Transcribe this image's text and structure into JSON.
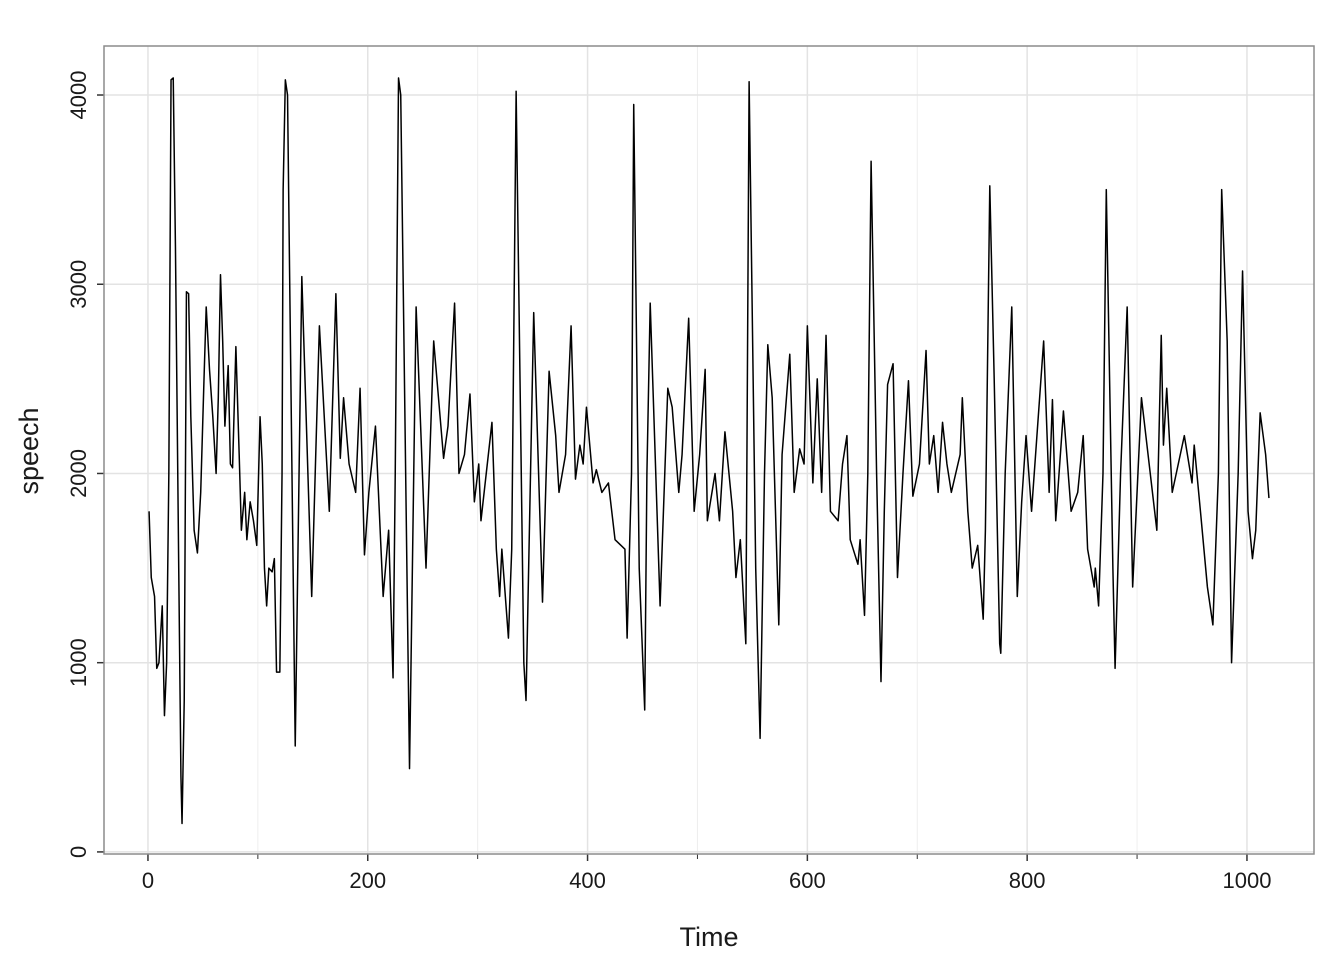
{
  "chart_data": {
    "type": "line",
    "x_label": "Time",
    "y_label": "speech",
    "xlim": [
      -40,
      1061
    ],
    "ylim": [
      -11,
      4259
    ],
    "xticks": [
      0,
      200,
      400,
      600,
      800,
      1000
    ],
    "xminorticks": [
      100,
      300,
      500,
      700,
      900
    ],
    "yticks": [
      0,
      1000,
      2000,
      3000,
      4000
    ],
    "grid": true,
    "series": [
      {
        "color": "#000000",
        "x": [
          1,
          3,
          6,
          8,
          10,
          13,
          15,
          17,
          19,
          21,
          23,
          25,
          28,
          30,
          31,
          33,
          35,
          37,
          39,
          42,
          45,
          48,
          51,
          53,
          56,
          59,
          62,
          64,
          66,
          68,
          70,
          73,
          75,
          77,
          80,
          83,
          85,
          88,
          90,
          93,
          96,
          99,
          102,
          104,
          106,
          108,
          110,
          113,
          115,
          117,
          120,
          122,
          123,
          125,
          127,
          129,
          134,
          140,
          149,
          156,
          165,
          171,
          175,
          178,
          183,
          189,
          193,
          197,
          201,
          207,
          214,
          219,
          223,
          225,
          228,
          230,
          238,
          244,
          253,
          260,
          269,
          273,
          279,
          283,
          288,
          293,
          297,
          301,
          303,
          313,
          317,
          320,
          322,
          328,
          331,
          335,
          342,
          344,
          351,
          359,
          365,
          371,
          374,
          380,
          385,
          389,
          393,
          396,
          399,
          405,
          408,
          413,
          419,
          425,
          434,
          436,
          440,
          442,
          447,
          452,
          454,
          457,
          466,
          473,
          477,
          483,
          486,
          492,
          497,
          502,
          507,
          509,
          516,
          520,
          525,
          532,
          535,
          539,
          544,
          547,
          553,
          557,
          561,
          564,
          568,
          574,
          577,
          584,
          588,
          593,
          597,
          600,
          605,
          609,
          613,
          617,
          621,
          628,
          632,
          636,
          639,
          646,
          648,
          652,
          655,
          658,
          663,
          667,
          670,
          673,
          678,
          682,
          687,
          692,
          696,
          702,
          708,
          711,
          715,
          719,
          723,
          727,
          731,
          739,
          741,
          746,
          750,
          755,
          760,
          762,
          766,
          770,
          775,
          776,
          780,
          786,
          791,
          795,
          799,
          804,
          815,
          820,
          823,
          826,
          833,
          840,
          846,
          851,
          855,
          861,
          862,
          865,
          869,
          872,
          878,
          880,
          885,
          891,
          896,
          904,
          912,
          918,
          922,
          924,
          927,
          932,
          943,
          950,
          952,
          958,
          964,
          969,
          974,
          977,
          982,
          986,
          992,
          996,
          1001,
          1005,
          1008,
          1012,
          1017,
          1020
        ],
        "values": [
          1800,
          1450,
          1350,
          970,
          1000,
          1300,
          720,
          1000,
          2000,
          4080,
          4090,
          3200,
          1500,
          400,
          150,
          800,
          2960,
          2950,
          2300,
          1700,
          1580,
          1900,
          2500,
          2880,
          2550,
          2300,
          2000,
          2400,
          3050,
          2700,
          2250,
          2570,
          2050,
          2030,
          2670,
          2100,
          1700,
          1900,
          1650,
          1850,
          1750,
          1620,
          2300,
          2050,
          1500,
          1300,
          1500,
          1480,
          1550,
          950,
          950,
          2000,
          3500,
          4080,
          4000,
          3000,
          560,
          3040,
          1350,
          2780,
          1800,
          2950,
          2080,
          2400,
          2050,
          1900,
          2450,
          1570,
          1900,
          2250,
          1350,
          1700,
          920,
          2000,
          4090,
          4000,
          440,
          2880,
          1500,
          2700,
          2080,
          2250,
          2900,
          2000,
          2100,
          2420,
          1850,
          2050,
          1750,
          2270,
          1600,
          1350,
          1600,
          1130,
          1600,
          4020,
          1000,
          800,
          2850,
          1320,
          2540,
          2200,
          1900,
          2100,
          2780,
          1970,
          2150,
          2050,
          2350,
          1950,
          2020,
          1900,
          1950,
          1650,
          1600,
          1130,
          2000,
          3950,
          1500,
          750,
          2000,
          2900,
          1300,
          2450,
          2350,
          1900,
          2100,
          2820,
          1800,
          2100,
          2550,
          1750,
          2000,
          1750,
          2220,
          1800,
          1450,
          1650,
          1100,
          4070,
          1500,
          600,
          2000,
          2680,
          2400,
          1200,
          2100,
          2630,
          1900,
          2130,
          2050,
          2780,
          1950,
          2500,
          1900,
          2730,
          1800,
          1750,
          2050,
          2200,
          1650,
          1520,
          1650,
          1250,
          2000,
          3650,
          2000,
          900,
          1800,
          2470,
          2580,
          1450,
          2000,
          2490,
          1880,
          2050,
          2650,
          2050,
          2200,
          1900,
          2270,
          2050,
          1900,
          2100,
          2400,
          1800,
          1500,
          1620,
          1230,
          1700,
          3520,
          2500,
          1100,
          1050,
          2000,
          2880,
          1350,
          1850,
          2200,
          1800,
          2700,
          1900,
          2390,
          1750,
          2330,
          1800,
          1900,
          2200,
          1600,
          1400,
          1500,
          1300,
          2000,
          3500,
          1500,
          970,
          2000,
          2880,
          1400,
          2400,
          2000,
          1700,
          2730,
          2150,
          2450,
          1900,
          2200,
          1950,
          2150,
          1780,
          1400,
          1200,
          2000,
          3500,
          2700,
          1000,
          2000,
          3070,
          1800,
          1550,
          1700,
          2320,
          2100,
          1870
        ]
      }
    ]
  }
}
